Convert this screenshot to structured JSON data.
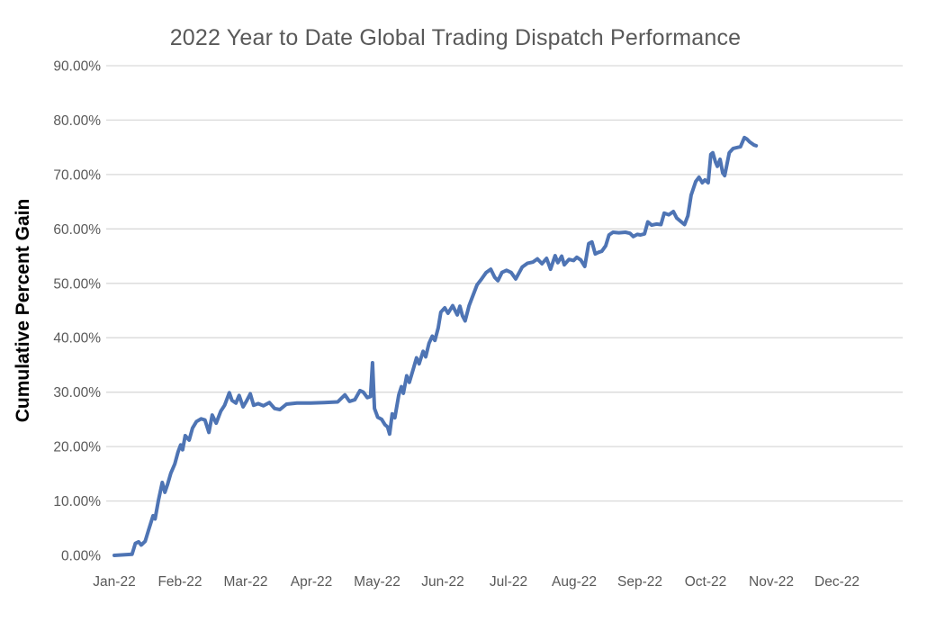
{
  "chart_data": {
    "type": "line",
    "title": "2022 Year to Date Global Trading Dispatch Performance",
    "xlabel": "",
    "ylabel": "Cumulative Percent Gain",
    "legend": "none",
    "grid": "horizontal-only",
    "ylim": [
      0,
      90
    ],
    "xlim_months": [
      0,
      11.5
    ],
    "y_unit": "percent",
    "x_ticks": [
      {
        "label": "Jan-22",
        "month": 0
      },
      {
        "label": "Feb-22",
        "month": 1
      },
      {
        "label": "Mar-22",
        "month": 2
      },
      {
        "label": "Apr-22",
        "month": 3
      },
      {
        "label": "May-22",
        "month": 4
      },
      {
        "label": "Jun-22",
        "month": 5
      },
      {
        "label": "Jul-22",
        "month": 6
      },
      {
        "label": "Aug-22",
        "month": 7
      },
      {
        "label": "Sep-22",
        "month": 8
      },
      {
        "label": "Oct-22",
        "month": 9
      },
      {
        "label": "Nov-22",
        "month": 10
      },
      {
        "label": "Dec-22",
        "month": 11
      }
    ],
    "y_ticks": [
      {
        "label": "0.00%",
        "value": 0
      },
      {
        "label": "10.00%",
        "value": 10
      },
      {
        "label": "20.00%",
        "value": 20
      },
      {
        "label": "30.00%",
        "value": 30
      },
      {
        "label": "40.00%",
        "value": 40
      },
      {
        "label": "50.00%",
        "value": 50
      },
      {
        "label": "60.00%",
        "value": 60
      },
      {
        "label": "70.00%",
        "value": 70
      },
      {
        "label": "80.00%",
        "value": 80
      },
      {
        "label": "90.00%",
        "value": 90
      }
    ],
    "gridline_values": [
      10,
      20,
      30,
      40,
      50,
      60,
      70,
      80,
      90
    ],
    "series": [
      {
        "name": "Cumulative Percent Gain",
        "color": "#4e74b4",
        "points": [
          [
            0.0,
            0.0
          ],
          [
            0.27,
            0.2
          ],
          [
            0.32,
            2.2
          ],
          [
            0.37,
            2.5
          ],
          [
            0.41,
            1.9
          ],
          [
            0.47,
            2.6
          ],
          [
            0.52,
            4.6
          ],
          [
            0.59,
            7.3
          ],
          [
            0.62,
            6.7
          ],
          [
            0.67,
            10.0
          ],
          [
            0.73,
            13.4
          ],
          [
            0.77,
            11.6
          ],
          [
            0.81,
            13.0
          ],
          [
            0.86,
            15.1
          ],
          [
            0.92,
            16.8
          ],
          [
            0.97,
            19.0
          ],
          [
            1.01,
            20.3
          ],
          [
            1.04,
            19.4
          ],
          [
            1.08,
            22.0
          ],
          [
            1.14,
            21.2
          ],
          [
            1.19,
            23.4
          ],
          [
            1.25,
            24.6
          ],
          [
            1.32,
            25.1
          ],
          [
            1.38,
            24.9
          ],
          [
            1.44,
            22.6
          ],
          [
            1.49,
            25.8
          ],
          [
            1.55,
            24.3
          ],
          [
            1.62,
            26.5
          ],
          [
            1.68,
            27.6
          ],
          [
            1.75,
            29.9
          ],
          [
            1.79,
            28.5
          ],
          [
            1.85,
            28.0
          ],
          [
            1.9,
            29.4
          ],
          [
            1.96,
            27.3
          ],
          [
            2.01,
            28.3
          ],
          [
            2.07,
            29.7
          ],
          [
            2.12,
            27.6
          ],
          [
            2.19,
            27.9
          ],
          [
            2.27,
            27.5
          ],
          [
            2.36,
            28.1
          ],
          [
            2.44,
            27.0
          ],
          [
            2.52,
            26.8
          ],
          [
            2.62,
            27.8
          ],
          [
            2.78,
            28.0
          ],
          [
            2.99,
            28.0
          ],
          [
            3.19,
            28.1
          ],
          [
            3.4,
            28.2
          ],
          [
            3.51,
            29.5
          ],
          [
            3.58,
            28.3
          ],
          [
            3.66,
            28.6
          ],
          [
            3.74,
            30.3
          ],
          [
            3.79,
            30.0
          ],
          [
            3.85,
            29.0
          ],
          [
            3.9,
            29.2
          ],
          [
            3.93,
            35.4
          ],
          [
            3.96,
            27.0
          ],
          [
            4.01,
            25.4
          ],
          [
            4.07,
            25.0
          ],
          [
            4.12,
            24.0
          ],
          [
            4.16,
            23.6
          ],
          [
            4.19,
            22.3
          ],
          [
            4.23,
            26.0
          ],
          [
            4.27,
            25.3
          ],
          [
            4.33,
            29.5
          ],
          [
            4.37,
            31.0
          ],
          [
            4.4,
            29.8
          ],
          [
            4.45,
            33.0
          ],
          [
            4.49,
            31.8
          ],
          [
            4.55,
            34.2
          ],
          [
            4.6,
            36.3
          ],
          [
            4.64,
            35.2
          ],
          [
            4.7,
            37.5
          ],
          [
            4.74,
            36.5
          ],
          [
            4.79,
            39.0
          ],
          [
            4.84,
            40.3
          ],
          [
            4.88,
            39.5
          ],
          [
            4.93,
            41.8
          ],
          [
            4.97,
            44.7
          ],
          [
            5.03,
            45.5
          ],
          [
            5.08,
            44.5
          ],
          [
            5.15,
            45.9
          ],
          [
            5.22,
            44.2
          ],
          [
            5.26,
            45.8
          ],
          [
            5.3,
            44.0
          ],
          [
            5.34,
            43.1
          ],
          [
            5.4,
            45.9
          ],
          [
            5.45,
            47.5
          ],
          [
            5.52,
            49.7
          ],
          [
            5.59,
            50.8
          ],
          [
            5.66,
            52.0
          ],
          [
            5.73,
            52.6
          ],
          [
            5.79,
            51.1
          ],
          [
            5.84,
            50.5
          ],
          [
            5.9,
            52.0
          ],
          [
            5.97,
            52.4
          ],
          [
            6.04,
            52.0
          ],
          [
            6.11,
            50.8
          ],
          [
            6.21,
            53.0
          ],
          [
            6.29,
            53.7
          ],
          [
            6.37,
            53.9
          ],
          [
            6.44,
            54.5
          ],
          [
            6.51,
            53.6
          ],
          [
            6.58,
            54.6
          ],
          [
            6.64,
            52.6
          ],
          [
            6.71,
            55.1
          ],
          [
            6.75,
            53.8
          ],
          [
            6.81,
            55.0
          ],
          [
            6.85,
            53.4
          ],
          [
            6.92,
            54.4
          ],
          [
            6.99,
            54.2
          ],
          [
            7.04,
            54.8
          ],
          [
            7.1,
            54.3
          ],
          [
            7.16,
            53.1
          ],
          [
            7.22,
            57.3
          ],
          [
            7.27,
            57.6
          ],
          [
            7.32,
            55.4
          ],
          [
            7.37,
            55.7
          ],
          [
            7.42,
            55.9
          ],
          [
            7.48,
            56.9
          ],
          [
            7.53,
            58.9
          ],
          [
            7.59,
            59.4
          ],
          [
            7.68,
            59.3
          ],
          [
            7.78,
            59.4
          ],
          [
            7.85,
            59.2
          ],
          [
            7.9,
            58.6
          ],
          [
            7.96,
            59.0
          ],
          [
            8.01,
            58.9
          ],
          [
            8.07,
            59.1
          ],
          [
            8.12,
            61.3
          ],
          [
            8.18,
            60.7
          ],
          [
            8.25,
            60.9
          ],
          [
            8.32,
            60.8
          ],
          [
            8.37,
            62.9
          ],
          [
            8.44,
            62.6
          ],
          [
            8.51,
            63.2
          ],
          [
            8.56,
            62.0
          ],
          [
            8.63,
            61.3
          ],
          [
            8.68,
            60.8
          ],
          [
            8.73,
            62.4
          ],
          [
            8.78,
            66.2
          ],
          [
            8.85,
            68.7
          ],
          [
            8.9,
            69.5
          ],
          [
            8.95,
            68.5
          ],
          [
            8.99,
            69.0
          ],
          [
            9.04,
            68.5
          ],
          [
            9.08,
            73.7
          ],
          [
            9.11,
            74.0
          ],
          [
            9.15,
            72.3
          ],
          [
            9.18,
            71.5
          ],
          [
            9.22,
            72.8
          ],
          [
            9.26,
            70.3
          ],
          [
            9.29,
            69.8
          ],
          [
            9.36,
            74.0
          ],
          [
            9.42,
            74.8
          ],
          [
            9.49,
            75.0
          ],
          [
            9.53,
            75.1
          ],
          [
            9.59,
            76.8
          ],
          [
            9.63,
            76.5
          ],
          [
            9.67,
            76.0
          ],
          [
            9.74,
            75.4
          ],
          [
            9.77,
            75.3
          ]
        ]
      }
    ]
  },
  "colors": {
    "line": "#4e74b4",
    "gridline": "#d9d9d9",
    "title_text": "#595959",
    "axis_tick_text": "#595959",
    "axis_title_text": "#000000",
    "background": "#ffffff"
  }
}
